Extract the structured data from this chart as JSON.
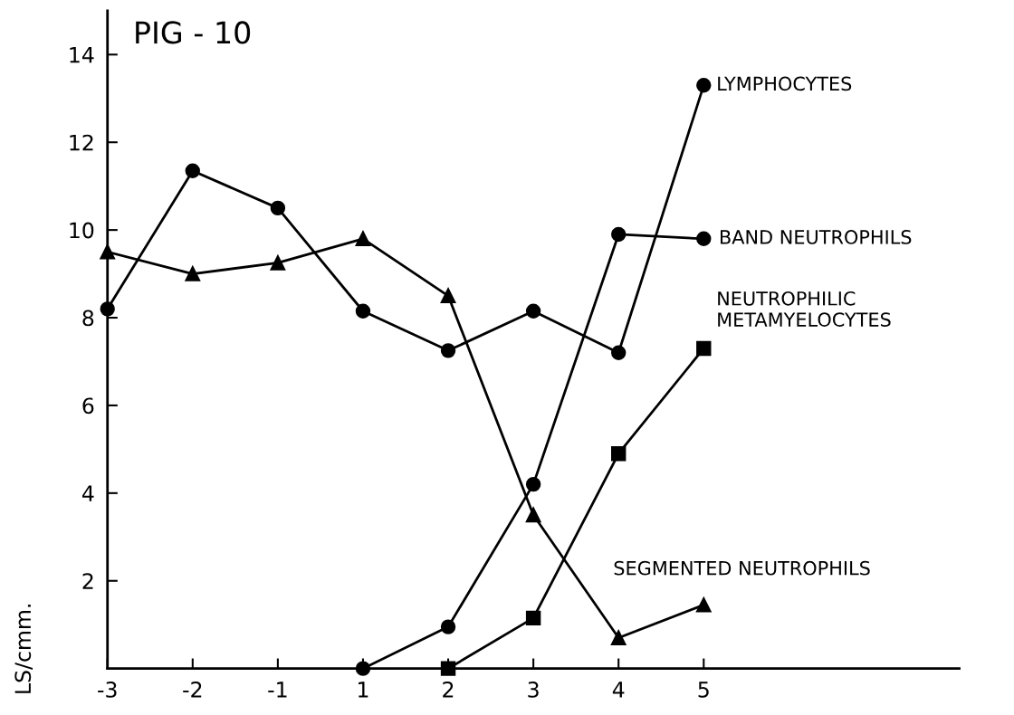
{
  "chart_data": {
    "type": "line",
    "title": "PIG - 10",
    "ylabel": "LS/cmm.",
    "categories": [
      "-3",
      "-2",
      "-1",
      "1",
      "2",
      "3",
      "4",
      "5"
    ],
    "ylim": [
      0,
      15
    ],
    "yticks": [
      2,
      4,
      6,
      8,
      10,
      12,
      14
    ],
    "grid": false,
    "legend": false,
    "series": [
      {
        "name": "LYMPHOCYTES",
        "color": "#000000",
        "marker": "circle",
        "values": [
          8.2,
          11.35,
          10.5,
          8.15,
          7.25,
          8.15,
          7.2,
          13.3
        ]
      },
      {
        "name": "BAND NEUTROPHILS",
        "color": "#000000",
        "marker": "circle",
        "values": [
          null,
          null,
          null,
          0,
          0.95,
          4.2,
          9.9,
          9.8
        ]
      },
      {
        "name": "NEUTROPHILIC\nMETAMYELOCYTES",
        "color": "#000000",
        "marker": "square",
        "values": [
          null,
          null,
          null,
          null,
          0,
          1.15,
          4.9,
          7.3
        ]
      },
      {
        "name": "SEGMENTED NEUTROPHILS",
        "color": "#000000",
        "marker": "triangle",
        "values": [
          9.5,
          9.0,
          9.25,
          9.8,
          8.5,
          3.5,
          0.7,
          1.45
        ]
      }
    ]
  }
}
